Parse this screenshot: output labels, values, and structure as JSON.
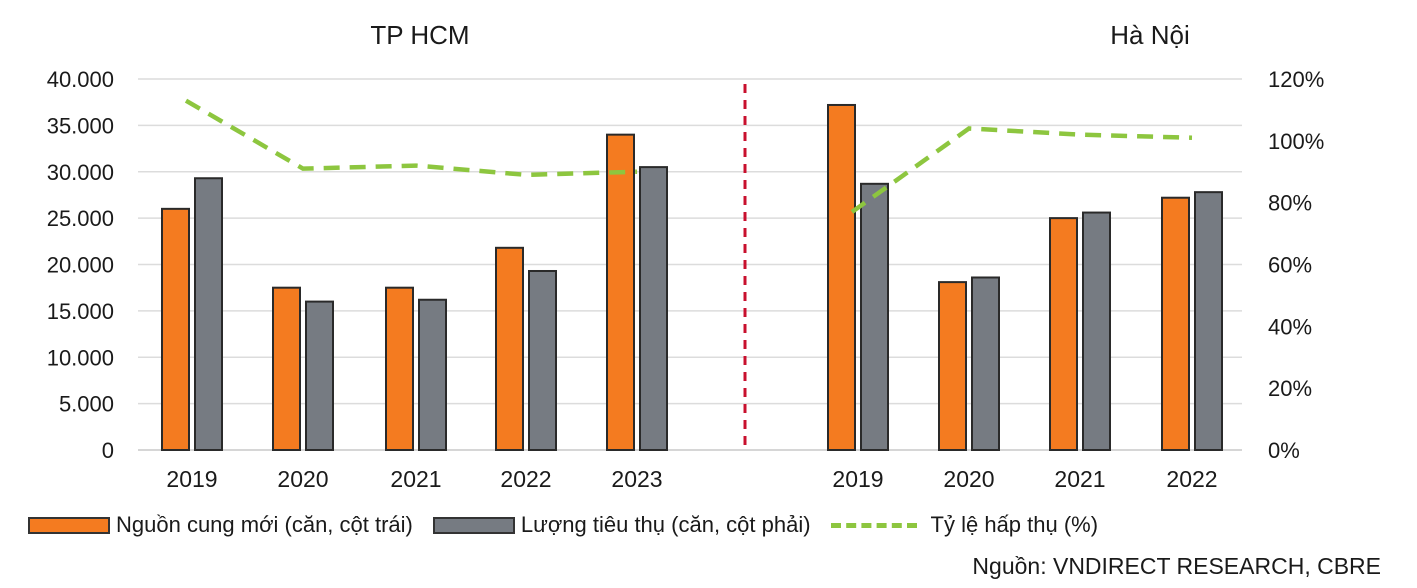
{
  "chart_data": {
    "type": "bar",
    "title_left": "TP HCM",
    "title_right": "Hà Nội",
    "y_left_ticks": [
      "40.000",
      "35.000",
      "30.000",
      "25.000",
      "20.000",
      "15.000",
      "10.000",
      "5.000",
      "0"
    ],
    "y_right_ticks": [
      "120%",
      "100%",
      "80%",
      "60%",
      "40%",
      "20%",
      "0%"
    ],
    "ylim_left": [
      0,
      40000
    ],
    "ylim_right": [
      0,
      120
    ],
    "grid": true,
    "panels": [
      {
        "name": "TP HCM",
        "categories": [
          "2019",
          "2020",
          "2021",
          "2022",
          "2023"
        ],
        "series": [
          {
            "name": "Nguồn cung mới (căn, cột trái)",
            "color": "#f47b20",
            "values": [
              26000,
              17500,
              17500,
              21800,
              34000
            ]
          },
          {
            "name": "Lượng tiêu thụ (căn, cột phải)",
            "color": "#767b82",
            "values": [
              29300,
              16000,
              16200,
              19300,
              30500
            ]
          },
          {
            "name": "Tỷ lệ hấp thụ (%)",
            "color": "#8dc63f",
            "type": "line",
            "values": [
              113,
              91,
              92,
              89,
              90
            ]
          }
        ]
      },
      {
        "name": "Hà Nội",
        "categories": [
          "2019",
          "2020",
          "2021",
          "2022"
        ],
        "series": [
          {
            "name": "Nguồn cung mới (căn, cột trái)",
            "color": "#f47b20",
            "values": [
              37200,
              18100,
              25000,
              27200
            ]
          },
          {
            "name": "Lượng tiêu thụ (căn, cột phải)",
            "color": "#767b82",
            "values": [
              28700,
              18600,
              25600,
              27800
            ]
          },
          {
            "name": "Tỷ lệ hấp thụ (%)",
            "color": "#8dc63f",
            "type": "line",
            "values": [
              77,
              104,
              102,
              101
            ]
          }
        ]
      }
    ]
  },
  "legend": {
    "supply": "Nguồn cung mới (căn, cột trái)",
    "sales": "Lượng tiêu thụ (căn, cột phải)",
    "rate": "Tỷ lệ hấp thụ (%)"
  },
  "source": "Nguồn: VNDIRECT RESEARCH, CBRE"
}
